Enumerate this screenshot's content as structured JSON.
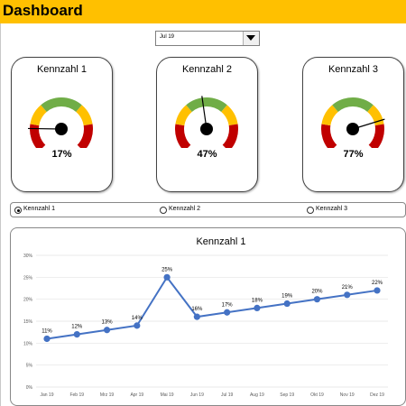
{
  "header": {
    "title": "Dashboard"
  },
  "filter": {
    "selected": "Jul 19"
  },
  "gauges": [
    {
      "title": "Kennzahl  1",
      "value_label": "17%",
      "value": 0.17
    },
    {
      "title": "Kennzahl  2",
      "value_label": "47%",
      "value": 0.47
    },
    {
      "title": "Kennzahl  3",
      "value_label": "77%",
      "value": 0.77
    }
  ],
  "gauge_bands": [
    {
      "color": "#C00000",
      "from": 0.0,
      "to": 0.2
    },
    {
      "color": "#FFC000",
      "from": 0.2,
      "to": 0.35
    },
    {
      "color": "#70AD47",
      "from": 0.35,
      "to": 0.65
    },
    {
      "color": "#FFC000",
      "from": 0.65,
      "to": 0.8
    },
    {
      "color": "#C00000",
      "from": 0.8,
      "to": 1.0
    }
  ],
  "radios": [
    {
      "label": "Kennzahl 1",
      "checked": true
    },
    {
      "label": "Kennzahl 2",
      "checked": false
    },
    {
      "label": "Kennzahl 3",
      "checked": false
    }
  ],
  "chart_data": {
    "type": "line",
    "title": "Kennzahl  1",
    "categories": [
      "Jan 19",
      "Feb 19",
      "Mrz 19",
      "Apr 19",
      "Mai 19",
      "Jun 19",
      "Jul 19",
      "Aug 19",
      "Sep 19",
      "Okt 19",
      "Nov 19",
      "Dez 19"
    ],
    "values": [
      11,
      12,
      13,
      14,
      25,
      16,
      17,
      18,
      19,
      20,
      21,
      22
    ],
    "data_labels": [
      "11%",
      "12%",
      "13%",
      "14%",
      "25%",
      "16%",
      "17%",
      "18%",
      "19%",
      "20%",
      "21%",
      "22%"
    ],
    "ylim": [
      0,
      30
    ],
    "yticks": [
      "0%",
      "5%",
      "10%",
      "15%",
      "20%",
      "25%",
      "30%"
    ],
    "grid": true,
    "legend": "none",
    "line_color": "#4472C4"
  }
}
